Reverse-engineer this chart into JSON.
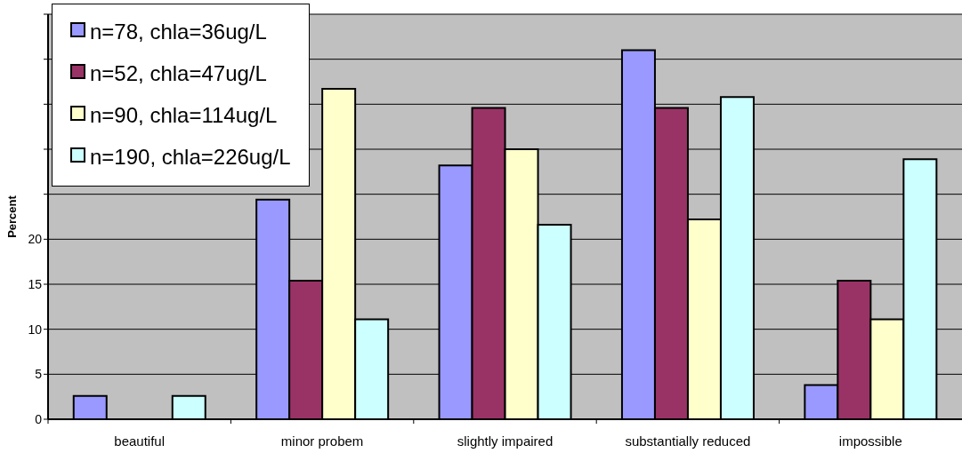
{
  "chart_data": {
    "type": "bar",
    "ylabel": "Percent",
    "categories": [
      "beautiful",
      "minor probem",
      "slightly impaired",
      "substantially reduced",
      "impossible"
    ],
    "series": [
      {
        "name": "n=78, chla=36ug/L",
        "color": "#9999ff",
        "values": [
          2.6,
          24.4,
          28.2,
          41.0,
          3.8
        ]
      },
      {
        "name": "n=52, chla=47ug/L",
        "color": "#993366",
        "values": [
          0,
          15.4,
          34.6,
          34.6,
          15.4
        ]
      },
      {
        "name": "n=90, chla=114ug/L",
        "color": "#ffffcc",
        "values": [
          0,
          36.7,
          30.0,
          22.2,
          11.1
        ]
      },
      {
        "name": "n=190, chla=226ug/L",
        "color": "#ccffff",
        "values": [
          2.6,
          11.1,
          21.6,
          35.8,
          28.9
        ]
      }
    ],
    "ylim": [
      0,
      45
    ],
    "yticks": [
      0,
      5,
      10,
      15,
      20,
      {
        "value": 25,
        "label": null
      },
      {
        "value": 30,
        "label": null
      },
      {
        "value": 35,
        "label": null
      },
      {
        "value": 40,
        "label": null
      },
      {
        "value": 45,
        "label": null
      }
    ],
    "grid": "y",
    "legend": "top left"
  }
}
